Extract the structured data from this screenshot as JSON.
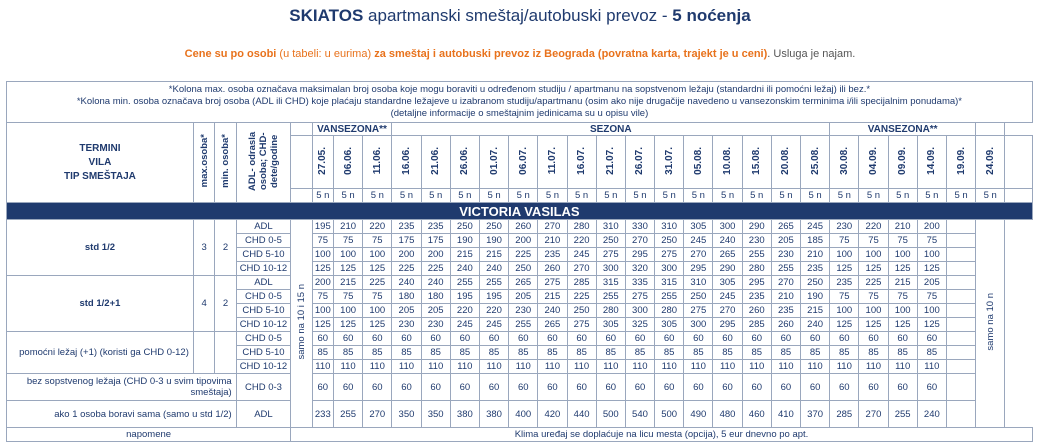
{
  "title": {
    "bold": "SKIATOS",
    "normal": "apartmanski smeštaj/autobuski prevoz - ",
    "nights": "5 noćenja"
  },
  "subtitle": {
    "p1": "Cene su po osobi",
    "p2": " (u tabeli: u eurima) ",
    "p3": "za smeštaj i autobuski prevoz iz Beograda (povratna karta, trajekt je u ceni)",
    "p4": ". Usluga je najam."
  },
  "notes": [
    "*Kolona max. osoba označava maksimalan broj osoba koje mogu boraviti u određenom studiju / apartmanu na sopstvenom ležaju (standardni ili pomoćni ležaj) ili bez.*",
    "*Kolona min. osoba označava broj osoba (ADL ili CHD) koje plaćaju standardne ležajeve u izabranom studiju/apartmanu (osim ako nije drugačije navedeno u vansezonskim terminima i/ili specijalnim ponudama)*",
    "(detaljne informacije o smeštajnim jedinicama su u opisu vile)"
  ],
  "header": {
    "termini": "TERMINI",
    "vila": "VILA",
    "tip": "TIP SMEŠTAJA",
    "max": "max.osoba*",
    "min": "min. osoba*",
    "adl": "ADL- odrasla osoba; CHD- dete/godine",
    "season_low1": "VANSEZONA**",
    "season_high": "SEZONA",
    "season_low2": "VANSEZONA**"
  },
  "dates": [
    "27.05.",
    "06.06.",
    "11.06.",
    "16.06.",
    "21.06.",
    "26.06.",
    "01.07.",
    "06.07.",
    "11.07.",
    "16.07.",
    "21.07.",
    "26.07.",
    "31.07.",
    "05.08.",
    "10.08.",
    "15.08.",
    "20.08.",
    "25.08.",
    "30.08.",
    "04.09.",
    "09.09.",
    "14.09.",
    "19.09.",
    "24.09."
  ],
  "nights_label": "5 n",
  "villa": "VICTORIA VASILAS",
  "side_left": "samo na 10 i 15 n",
  "side_right": "samo na 10 n",
  "groups": [
    {
      "name": "std 1/2",
      "max": "3",
      "min": "2",
      "rows": [
        {
          "t": "ADL",
          "v": [
            "195",
            "210",
            "220",
            "235",
            "235",
            "250",
            "250",
            "260",
            "270",
            "280",
            "310",
            "330",
            "310",
            "305",
            "300",
            "290",
            "265",
            "245",
            "230",
            "220",
            "210",
            "200"
          ]
        },
        {
          "t": "CHD 0-5",
          "v": [
            "75",
            "75",
            "75",
            "175",
            "175",
            "190",
            "190",
            "200",
            "210",
            "220",
            "250",
            "270",
            "250",
            "245",
            "240",
            "230",
            "205",
            "185",
            "75",
            "75",
            "75",
            "75"
          ]
        },
        {
          "t": "CHD 5-10",
          "v": [
            "100",
            "100",
            "100",
            "200",
            "200",
            "215",
            "215",
            "225",
            "235",
            "245",
            "275",
            "295",
            "275",
            "270",
            "265",
            "255",
            "230",
            "210",
            "100",
            "100",
            "100",
            "100"
          ]
        },
        {
          "t": "CHD 10-12",
          "v": [
            "125",
            "125",
            "125",
            "225",
            "225",
            "240",
            "240",
            "250",
            "260",
            "270",
            "300",
            "320",
            "300",
            "295",
            "290",
            "280",
            "255",
            "235",
            "125",
            "125",
            "125",
            "125"
          ]
        }
      ]
    },
    {
      "name": "std 1/2+1",
      "max": "4",
      "min": "2",
      "rows": [
        {
          "t": "ADL",
          "v": [
            "200",
            "215",
            "225",
            "240",
            "240",
            "255",
            "255",
            "265",
            "275",
            "285",
            "315",
            "335",
            "315",
            "310",
            "305",
            "295",
            "270",
            "250",
            "235",
            "225",
            "215",
            "205"
          ]
        },
        {
          "t": "CHD 0-5",
          "v": [
            "75",
            "75",
            "75",
            "180",
            "180",
            "195",
            "195",
            "205",
            "215",
            "225",
            "255",
            "275",
            "255",
            "250",
            "245",
            "235",
            "210",
            "190",
            "75",
            "75",
            "75",
            "75"
          ]
        },
        {
          "t": "CHD 5-10",
          "v": [
            "100",
            "100",
            "100",
            "205",
            "205",
            "220",
            "220",
            "230",
            "240",
            "250",
            "280",
            "300",
            "280",
            "275",
            "270",
            "260",
            "235",
            "215",
            "100",
            "100",
            "100",
            "100"
          ]
        },
        {
          "t": "CHD 10-12",
          "v": [
            "125",
            "125",
            "125",
            "230",
            "230",
            "245",
            "245",
            "255",
            "265",
            "275",
            "305",
            "325",
            "305",
            "300",
            "295",
            "285",
            "260",
            "240",
            "125",
            "125",
            "125",
            "125"
          ]
        }
      ]
    },
    {
      "name": "pomoćni ležaj (+1) (koristi ga CHD 0-12)",
      "max": "",
      "min": "",
      "rows": [
        {
          "t": "CHD 0-5",
          "v": [
            "60",
            "60",
            "60",
            "60",
            "60",
            "60",
            "60",
            "60",
            "60",
            "60",
            "60",
            "60",
            "60",
            "60",
            "60",
            "60",
            "60",
            "60",
            "60",
            "60",
            "60",
            "60"
          ]
        },
        {
          "t": "CHD 5-10",
          "v": [
            "85",
            "85",
            "85",
            "85",
            "85",
            "85",
            "85",
            "85",
            "85",
            "85",
            "85",
            "85",
            "85",
            "85",
            "85",
            "85",
            "85",
            "85",
            "85",
            "85",
            "85",
            "85"
          ]
        },
        {
          "t": "CHD 10-12",
          "v": [
            "110",
            "110",
            "110",
            "110",
            "110",
            "110",
            "110",
            "110",
            "110",
            "110",
            "110",
            "110",
            "110",
            "110",
            "110",
            "110",
            "110",
            "110",
            "110",
            "110",
            "110",
            "110"
          ]
        }
      ]
    }
  ],
  "bez": {
    "name": "bez sopstvenog ležaja (CHD 0-3 u svim tipovima smeštaja)",
    "t": "CHD 0-3",
    "v": [
      "60",
      "60",
      "60",
      "60",
      "60",
      "60",
      "60",
      "60",
      "60",
      "60",
      "60",
      "60",
      "60",
      "60",
      "60",
      "60",
      "60",
      "60",
      "60",
      "60",
      "60",
      "60"
    ]
  },
  "sama": {
    "name": "ako 1 osoba boravi sama (samo u std 1/2)",
    "t": "ADL",
    "v": [
      "233",
      "255",
      "270",
      "350",
      "350",
      "380",
      "380",
      "400",
      "420",
      "440",
      "500",
      "540",
      "500",
      "490",
      "480",
      "460",
      "410",
      "370",
      "285",
      "270",
      "255",
      "240"
    ]
  },
  "footer": {
    "label": "napomene",
    "text": "Klima uređaj se doplaćuje na licu mesta (opcija), 5 eur dnevno po apt."
  }
}
